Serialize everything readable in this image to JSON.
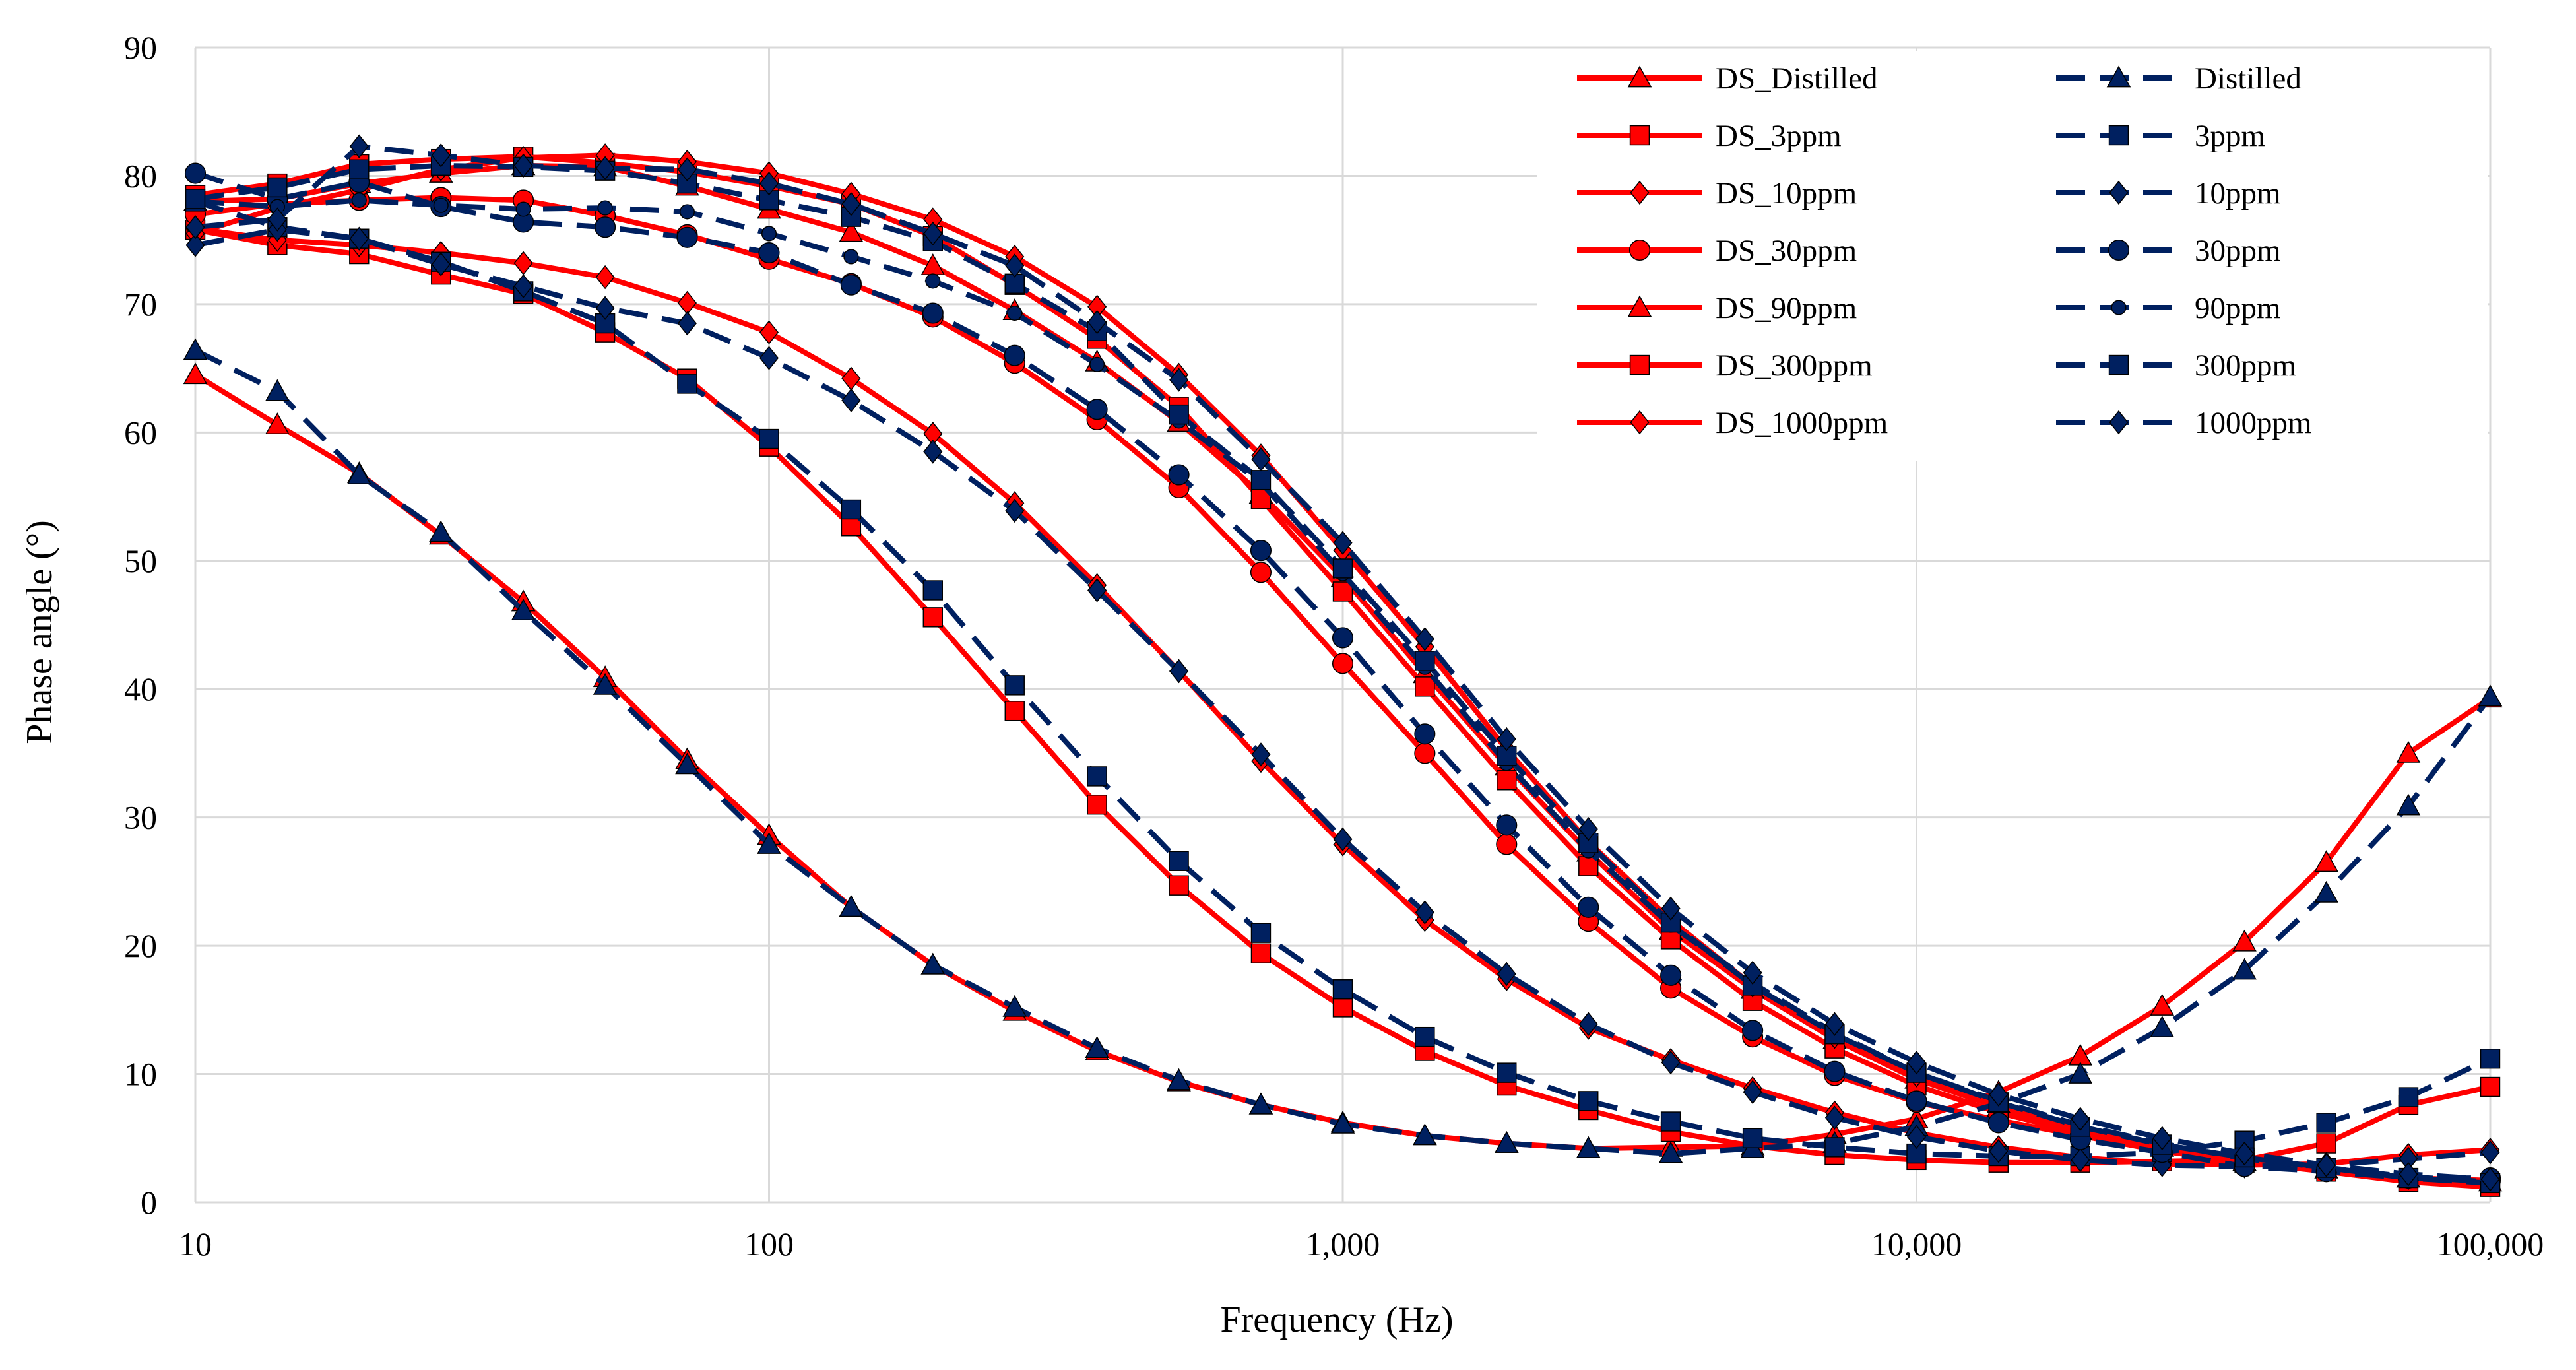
{
  "chart_data": {
    "type": "line",
    "title": "",
    "xlabel": "Frequency (Hz)",
    "ylabel": "Phase angle (°)",
    "x_scale": "log",
    "xlim": [
      10,
      100000
    ],
    "ylim": [
      0,
      90
    ],
    "grid": true,
    "legend_position": "top-right",
    "x_tick_labels": [
      "10",
      "100",
      "1,000",
      "10,000",
      "100,000"
    ],
    "y_ticks": [
      0,
      10,
      20,
      30,
      40,
      50,
      60,
      70,
      80,
      90
    ],
    "x": [
      10,
      13.9,
      19.3,
      26.8,
      37.3,
      51.8,
      72,
      100,
      139,
      193,
      268,
      373,
      518,
      720,
      1000,
      1390,
      1930,
      2680,
      3730,
      5180,
      7200,
      10000,
      13900,
      19300,
      26800,
      37300,
      51800,
      72000,
      100000
    ],
    "colors": {
      "ds": "#ff0000",
      "plain": "#002060"
    },
    "series": [
      {
        "name": "DS_Distilled",
        "group": "ds",
        "marker": "triangle",
        "values": [
          64.5,
          60.6,
          56.8,
          52.0,
          46.8,
          40.9,
          34.5,
          28.6,
          23.0,
          18.5,
          14.9,
          11.8,
          9.4,
          7.6,
          6.2,
          5.2,
          4.6,
          4.2,
          4.3,
          4.4,
          5.3,
          6.5,
          8.6,
          11.4,
          15.3,
          20.3,
          26.5,
          35.0,
          39.3
        ]
      },
      {
        "name": "DS_3ppm",
        "group": "ds",
        "marker": "square",
        "values": [
          75.8,
          74.6,
          73.9,
          72.3,
          70.8,
          67.8,
          64.2,
          58.9,
          52.7,
          45.6,
          38.3,
          31.0,
          24.7,
          19.4,
          15.2,
          11.8,
          9.1,
          7.2,
          5.5,
          4.4,
          3.7,
          3.3,
          3.1,
          3.1,
          3.2,
          3.3,
          4.6,
          7.6,
          9.0
        ]
      },
      {
        "name": "DS_10ppm",
        "group": "ds",
        "marker": "diamond",
        "values": [
          75.9,
          75.0,
          74.6,
          74.0,
          73.2,
          72.1,
          70.1,
          67.8,
          64.2,
          59.9,
          54.5,
          48.1,
          41.4,
          34.4,
          27.9,
          22.0,
          17.4,
          13.6,
          11.1,
          8.9,
          7.0,
          5.4,
          4.3,
          3.5,
          3.0,
          2.9,
          3.0,
          3.7,
          4.1
        ]
      },
      {
        "name": "DS_30ppm",
        "group": "ds",
        "marker": "circle",
        "values": [
          77.0,
          77.8,
          78.1,
          78.3,
          78.1,
          76.9,
          75.4,
          73.5,
          71.6,
          69.0,
          65.4,
          61.0,
          55.7,
          49.1,
          42.0,
          35.0,
          27.9,
          21.9,
          16.7,
          12.9,
          9.9,
          7.8,
          6.4,
          5.2,
          4.0,
          3.1,
          2.5,
          1.9,
          1.7
        ]
      },
      {
        "name": "DS_90ppm",
        "group": "ds",
        "marker": "triangle",
        "values": [
          78.0,
          78.2,
          79.4,
          80.2,
          80.8,
          80.7,
          79.2,
          77.4,
          75.6,
          73.0,
          69.5,
          65.5,
          60.8,
          55.2,
          48.7,
          41.2,
          34.0,
          27.3,
          21.2,
          16.6,
          12.7,
          9.6,
          7.4,
          5.6,
          4.3,
          3.2,
          2.6,
          1.9,
          1.6
        ]
      },
      {
        "name": "DS_300ppm",
        "group": "ds",
        "marker": "square",
        "values": [
          78.5,
          79.4,
          80.9,
          81.3,
          81.5,
          81.0,
          80.3,
          79.2,
          77.8,
          75.3,
          71.5,
          67.3,
          62.0,
          54.8,
          47.6,
          40.2,
          32.9,
          26.2,
          20.5,
          15.7,
          12.0,
          9.1,
          7.0,
          5.4,
          4.1,
          3.1,
          2.4,
          1.6,
          1.2
        ]
      },
      {
        "name": "DS_1000ppm",
        "group": "ds",
        "marker": "diamond",
        "values": [
          75.5,
          77.5,
          78.9,
          80.5,
          81.4,
          81.6,
          81.1,
          80.2,
          78.6,
          76.6,
          73.7,
          69.8,
          64.5,
          58.2,
          50.8,
          43.3,
          35.3,
          28.1,
          22.0,
          16.9,
          12.9,
          9.9,
          7.6,
          5.8,
          4.4,
          3.3,
          2.6,
          1.9,
          1.7
        ]
      },
      {
        "name": "Distilled",
        "group": "plain",
        "marker": "triangle",
        "values": [
          66.4,
          63.2,
          56.7,
          52.2,
          46.1,
          40.3,
          34.1,
          27.9,
          23.0,
          18.5,
          15.2,
          12.0,
          9.5,
          7.6,
          6.1,
          5.2,
          4.6,
          4.2,
          3.8,
          4.2,
          4.6,
          5.9,
          7.7,
          10.0,
          13.6,
          18.1,
          24.1,
          30.9,
          39.4
        ]
      },
      {
        "name": "3ppm",
        "group": "plain",
        "marker": "square",
        "values": [
          78.0,
          76.0,
          75.1,
          73.3,
          71.0,
          68.5,
          63.8,
          59.5,
          54.0,
          47.7,
          40.3,
          33.2,
          26.6,
          21.0,
          16.6,
          12.9,
          10.1,
          7.9,
          6.3,
          5.0,
          4.3,
          3.8,
          3.6,
          3.6,
          3.9,
          4.8,
          6.2,
          8.2,
          11.2
        ]
      },
      {
        "name": "10ppm",
        "group": "plain",
        "marker": "diamond",
        "values": [
          74.6,
          75.8,
          75.1,
          73.1,
          71.4,
          69.7,
          68.5,
          65.8,
          62.5,
          58.5,
          53.9,
          47.7,
          41.4,
          34.9,
          28.3,
          22.6,
          17.8,
          13.9,
          10.9,
          8.6,
          6.6,
          5.1,
          4.0,
          3.3,
          2.9,
          2.8,
          2.9,
          3.4,
          3.9
        ]
      },
      {
        "name": "30ppm",
        "group": "plain",
        "marker": "circle",
        "values": [
          80.2,
          78.2,
          79.5,
          77.6,
          76.4,
          76.0,
          75.2,
          74.0,
          71.5,
          69.3,
          66.0,
          61.8,
          56.7,
          50.8,
          44.0,
          36.5,
          29.4,
          23.0,
          17.7,
          13.4,
          10.2,
          7.9,
          6.2,
          4.9,
          3.9,
          2.8,
          2.4,
          1.9,
          1.9
        ]
      },
      {
        "name": "90ppm",
        "group": "plain",
        "marker": "circle",
        "values": [
          78.0,
          77.6,
          78.1,
          77.7,
          77.4,
          77.5,
          77.2,
          75.5,
          73.7,
          71.8,
          69.3,
          65.3,
          60.9,
          56.1,
          49.0,
          41.7,
          34.2,
          27.4,
          21.6,
          17.1,
          13.2,
          10.1,
          7.9,
          6.0,
          4.6,
          3.4,
          2.7,
          2.0,
          1.6
        ]
      },
      {
        "name": "300ppm",
        "group": "plain",
        "marker": "square",
        "values": [
          78.2,
          79.1,
          80.5,
          80.8,
          80.7,
          80.4,
          79.4,
          78.1,
          76.8,
          74.9,
          71.6,
          67.9,
          61.4,
          56.3,
          49.4,
          42.2,
          34.8,
          28.0,
          21.8,
          16.9,
          13.1,
          10.1,
          7.8,
          5.9,
          4.5,
          3.5,
          2.7,
          1.9,
          1.5
        ]
      },
      {
        "name": "1000ppm",
        "group": "plain",
        "marker": "diamond",
        "values": [
          76.0,
          76.6,
          82.3,
          81.6,
          80.8,
          80.6,
          80.5,
          79.4,
          77.8,
          75.5,
          73.0,
          68.6,
          64.1,
          57.9,
          51.4,
          43.9,
          36.1,
          29.1,
          22.9,
          17.9,
          13.9,
          10.9,
          8.4,
          6.5,
          5.0,
          3.8,
          2.9,
          2.2,
          1.8
        ]
      }
    ]
  }
}
